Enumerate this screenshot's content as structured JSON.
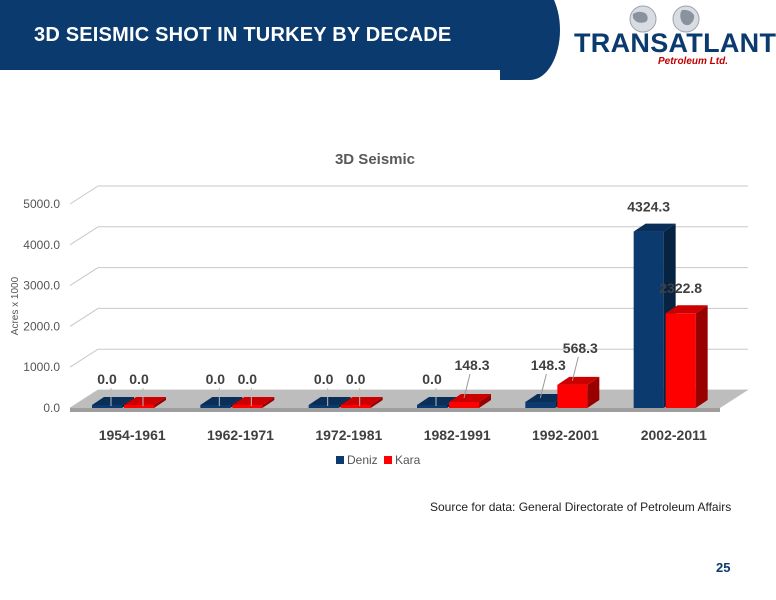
{
  "header": {
    "title": "3D SEISMIC SHOT IN TURKEY BY DECADE"
  },
  "logo": {
    "name": "TRANSATLANTIC",
    "subtitle": "Petroleum Ltd."
  },
  "colors": {
    "header_bg": "#0b3a6e",
    "deniz": "#0b3a6e",
    "kara": "#ff0000"
  },
  "chart_data": {
    "type": "bar",
    "title": "3D Seismic",
    "ylabel": "Acres x 1000",
    "xlabel": "",
    "categories": [
      "1954-1961",
      "1962-1971",
      "1972-1981",
      "1982-1991",
      "1992-2001",
      "2002-2011"
    ],
    "series": [
      {
        "name": "Deniz",
        "values": [
          0.0,
          0.0,
          0.0,
          0.0,
          148.3,
          4324.3
        ]
      },
      {
        "name": "Kara",
        "values": [
          0.0,
          0.0,
          0.0,
          148.3,
          568.3,
          2322.8
        ]
      }
    ],
    "y_ticks": [
      "0.0",
      "1000.0",
      "2000.0",
      "3000.0",
      "4000.0",
      "5000.0"
    ],
    "ylim": [
      0,
      5000
    ],
    "grid": true,
    "legend": "bottom",
    "value_labels": {
      "Deniz": [
        "0.0",
        "0.0",
        "0.0",
        "0.0",
        "148.3",
        "4324.3"
      ],
      "Kara": [
        "0.0",
        "0.0",
        "0.0",
        "148.3",
        "568.3",
        "2322.8"
      ]
    }
  },
  "source": "Source for data: General Directorate of Petroleum Affairs",
  "page_number": "25"
}
